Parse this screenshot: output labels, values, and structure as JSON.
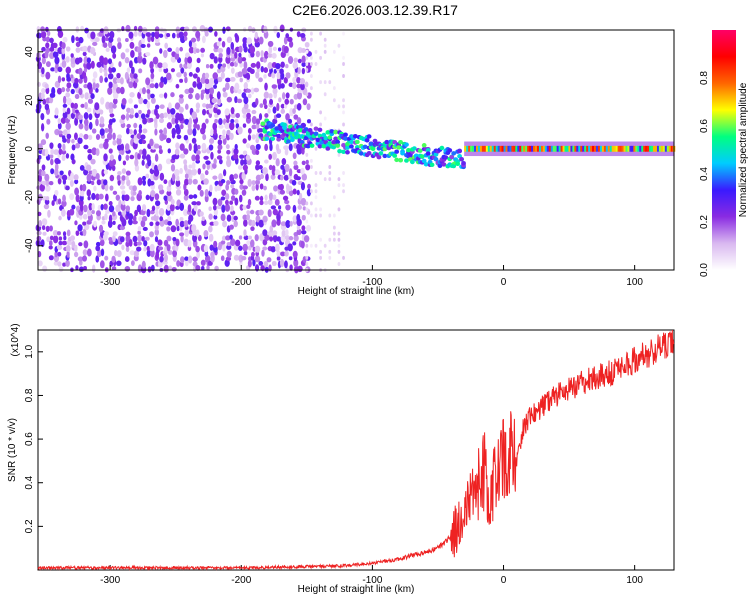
{
  "figure": {
    "title": "C2E6.2026.003.12.39.R17"
  },
  "chart_data": [
    {
      "type": "heatmap",
      "xlabel": "Height of straight line (km)",
      "ylabel": "Frequency (Hz)",
      "xlim": [
        -355,
        130
      ],
      "ylim": [
        -50,
        49
      ],
      "xticks": [
        -300,
        -200,
        -100,
        0,
        100
      ],
      "yticks": [
        -40,
        -20,
        0,
        20,
        40
      ],
      "colorbar": {
        "label": "Normalized spectral amplitude",
        "range": [
          0,
          1
        ],
        "ticks": [
          0.0,
          0.2,
          0.4,
          0.6,
          0.8
        ],
        "colors": [
          "#ffffff",
          "#d9b8f0",
          "#8a2be2",
          "#3a1aff",
          "#00ccff",
          "#00ff80",
          "#ffff00",
          "#ff6600",
          "#ff0000",
          "#ff0066"
        ]
      },
      "regions": [
        {
          "label": "noise",
          "x_range": [
            -355,
            -150
          ],
          "y_range": [
            -50,
            49
          ],
          "amplitude_range": [
            0.05,
            0.3
          ]
        },
        {
          "label": "sparse noise",
          "x_range": [
            -150,
            -120
          ],
          "y_range": [
            -50,
            49
          ],
          "amplitude_range": [
            0.02,
            0.1
          ]
        },
        {
          "label": "signal track",
          "x_range": [
            -185,
            -30
          ],
          "freq_start": 8,
          "freq_end": -5,
          "amplitude_range": [
            0.2,
            0.6
          ]
        },
        {
          "label": "carrier",
          "x_range": [
            -30,
            130
          ],
          "freq": 0,
          "amplitude_range": [
            0.3,
            0.9
          ]
        }
      ],
      "grid": false
    },
    {
      "type": "line",
      "xlabel": "Height of straight line (km)",
      "ylabel": "SNR (10 * v/v)",
      "y_multiplier": "(x10^4)",
      "xlim": [
        -355,
        130
      ],
      "ylim": [
        0,
        1.1
      ],
      "xticks": [
        -300,
        -200,
        -100,
        0,
        100
      ],
      "yticks": [
        0.2,
        0.4,
        0.6,
        0.8,
        1.0
      ],
      "color": "#ee2222",
      "series": [
        {
          "x": [
            -355,
            -300,
            -250,
            -200,
            -150,
            -120,
            -100,
            -80,
            -60,
            -50,
            -40,
            -30,
            -25,
            -20,
            -15,
            -10,
            -5,
            0,
            5,
            10,
            15,
            20,
            30,
            40,
            50,
            60,
            80,
            100,
            120,
            130
          ],
          "values": [
            0.01,
            0.01,
            0.01,
            0.01,
            0.015,
            0.02,
            0.03,
            0.05,
            0.08,
            0.1,
            0.15,
            0.25,
            0.35,
            0.4,
            0.45,
            0.3,
            0.45,
            0.5,
            0.55,
            0.5,
            0.65,
            0.7,
            0.75,
            0.8,
            0.83,
            0.86,
            0.9,
            0.96,
            1.02,
            1.05
          ]
        }
      ],
      "grid": false
    }
  ]
}
